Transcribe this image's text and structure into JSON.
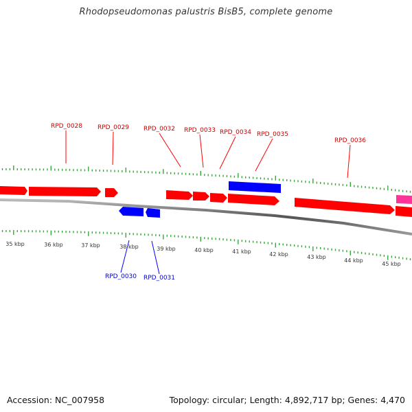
{
  "title": "Rhodopseudomonas palustris BisB5, complete genome",
  "footer": {
    "accession": "Accession: NC_007958",
    "stats": "Topology: circular; Length: 4,892,717 bp; Genes: 4,470"
  },
  "colors": {
    "forward": "#ff0000",
    "reverse": "#0000ff",
    "other": "#ff3399",
    "tick": "#33aa33",
    "backbone": "#777777"
  },
  "scale": {
    "labels": [
      "35 kbp",
      "36 kbp",
      "37 kbp",
      "38 kbp",
      "39 kbp",
      "40 kbp",
      "41 kbp",
      "42 kbp",
      "43 kbp",
      "44 kbp",
      "45 kbp"
    ]
  },
  "genes": [
    {
      "label": "RPD_0028",
      "strand": "forward"
    },
    {
      "label": "RPD_0029",
      "strand": "forward"
    },
    {
      "label": "RPD_0030",
      "strand": "reverse"
    },
    {
      "label": "RPD_0031",
      "strand": "reverse"
    },
    {
      "label": "RPD_0032",
      "strand": "forward"
    },
    {
      "label": "RPD_0033",
      "strand": "forward"
    },
    {
      "label": "RPD_0034",
      "strand": "forward"
    },
    {
      "label": "RPD_0035",
      "strand": "forward"
    },
    {
      "label": "RPD_0036",
      "strand": "forward"
    }
  ]
}
